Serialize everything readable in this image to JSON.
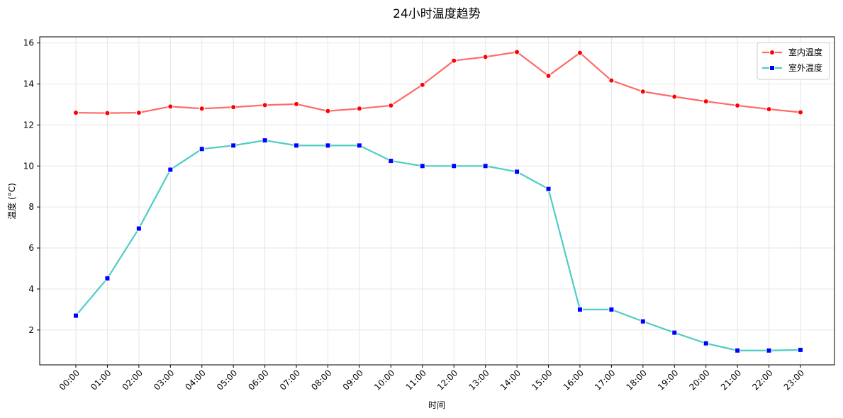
{
  "chart_data": {
    "type": "line",
    "title": "24小时温度趋势",
    "xlabel": "时间",
    "ylabel": "温度 (°C)",
    "categories": [
      "00:00",
      "01:00",
      "02:00",
      "03:00",
      "04:00",
      "05:00",
      "06:00",
      "07:00",
      "08:00",
      "09:00",
      "10:00",
      "11:00",
      "12:00",
      "13:00",
      "14:00",
      "15:00",
      "16:00",
      "17:00",
      "18:00",
      "19:00",
      "20:00",
      "21:00",
      "22:00",
      "23:00"
    ],
    "ylim": [
      0.3,
      16.3
    ],
    "yticks": [
      2,
      4,
      6,
      8,
      10,
      12,
      14,
      16
    ],
    "grid": true,
    "legend_position": "top-right",
    "series": [
      {
        "name": "室内温度",
        "color": "#ff6b6b",
        "marker_fill": "#ff0000",
        "marker": "circle",
        "values": [
          12.6,
          12.58,
          12.6,
          12.9,
          12.8,
          12.87,
          12.97,
          13.02,
          12.68,
          12.8,
          12.95,
          13.96,
          15.14,
          15.32,
          15.56,
          14.4,
          15.52,
          14.17,
          13.63,
          13.38,
          13.15,
          12.95,
          12.77,
          12.62
        ]
      },
      {
        "name": "室外温度",
        "color": "#4ecdc4",
        "marker_fill": "#0000ff",
        "marker": "square",
        "values": [
          2.7,
          4.52,
          6.95,
          9.82,
          10.83,
          11.0,
          11.25,
          11.0,
          11.0,
          11.0,
          10.25,
          10.0,
          10.0,
          10.0,
          9.72,
          8.88,
          3.0,
          3.0,
          2.42,
          1.87,
          1.35,
          1.0,
          1.0,
          1.03
        ]
      }
    ]
  }
}
